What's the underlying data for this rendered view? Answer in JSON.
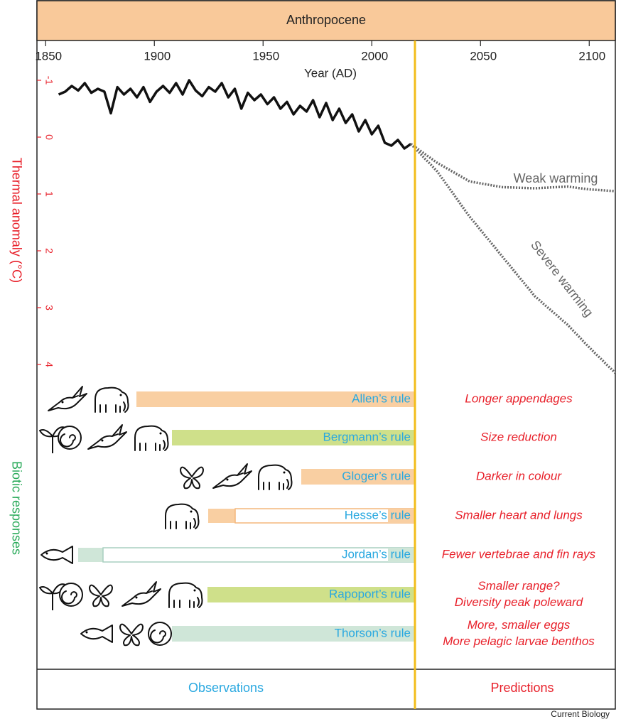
{
  "header": {
    "title": "Anthropocene"
  },
  "chart_data": {
    "type": "line",
    "x_label": "Year (AD)",
    "y_label": "Thermal anomaly (°C)",
    "xlim": [
      1846,
      2112
    ],
    "xticks": [
      1850,
      1900,
      1950,
      2000,
      2050,
      2100
    ],
    "ylim": [
      -1.3,
      4.2
    ],
    "yticks": [
      -1,
      0,
      1,
      2,
      3,
      4
    ],
    "y_inverted": true,
    "series": [
      {
        "color": "#111111",
        "style": "solid",
        "x": [
          1856,
          1859,
          1862,
          1865,
          1868,
          1871,
          1874,
          1877,
          1880,
          1883,
          1886,
          1889,
          1892,
          1895,
          1898,
          1901,
          1904,
          1907,
          1910,
          1913,
          1916,
          1919,
          1922,
          1925,
          1928,
          1931,
          1934,
          1937,
          1940,
          1943,
          1946,
          1949,
          1952,
          1955,
          1958,
          1961,
          1964,
          1967,
          1970,
          1973,
          1976,
          1979,
          1982,
          1985,
          1988,
          1991,
          1994,
          1997,
          2000,
          2003,
          2006,
          2009,
          2012,
          2015,
          2018
        ],
        "values": [
          -0.75,
          -0.8,
          -0.9,
          -0.82,
          -0.95,
          -0.78,
          -0.85,
          -0.8,
          -0.42,
          -0.88,
          -0.75,
          -0.85,
          -0.7,
          -0.88,
          -0.62,
          -0.8,
          -0.9,
          -0.78,
          -0.95,
          -0.75,
          -1.0,
          -0.82,
          -0.72,
          -0.88,
          -0.8,
          -0.95,
          -0.7,
          -0.85,
          -0.5,
          -0.78,
          -0.65,
          -0.75,
          -0.58,
          -0.7,
          -0.5,
          -0.62,
          -0.4,
          -0.55,
          -0.45,
          -0.65,
          -0.35,
          -0.6,
          -0.3,
          -0.5,
          -0.25,
          -0.4,
          -0.1,
          -0.3,
          -0.05,
          -0.2,
          0.1,
          0.15,
          0.05,
          0.2,
          0.12
        ]
      },
      {
        "name": "Weak warming",
        "color": "#666666",
        "style": "dotted",
        "x": [
          2018,
          2030,
          2045,
          2060,
          2075,
          2090,
          2100,
          2112
        ],
        "values": [
          0.12,
          0.45,
          0.78,
          0.88,
          0.9,
          0.87,
          0.92,
          0.95
        ]
      },
      {
        "name": "Severe warming",
        "color": "#666666",
        "style": "dotted",
        "x": [
          2018,
          2030,
          2045,
          2060,
          2075,
          2090,
          2100,
          2112
        ],
        "values": [
          0.12,
          0.6,
          1.4,
          2.1,
          2.8,
          3.3,
          3.7,
          4.15
        ]
      }
    ]
  },
  "biotic_label": "Biotic responses",
  "rules": [
    {
      "name": "Allen’s rule",
      "prediction": [
        "Longer appendages"
      ]
    },
    {
      "name": "Bergmann’s rule",
      "prediction": [
        "Size reduction"
      ]
    },
    {
      "name": "Gloger’s rule",
      "prediction": [
        "Darker in colour"
      ]
    },
    {
      "name": "Hesse’s rule",
      "prediction": [
        "Smaller heart and lungs"
      ]
    },
    {
      "name": "Jordan’s rule",
      "prediction": [
        "Fewer vertebrae and fin rays"
      ]
    },
    {
      "name": "Rapoport’s rule",
      "prediction": [
        "Smaller range?",
        "Diversity peak poleward"
      ]
    },
    {
      "name": "Thorson’s rule",
      "prediction": [
        "More, smaller eggs",
        "More pelagic larvae benthos"
      ]
    }
  ],
  "footer": {
    "left": "Observations",
    "right": "Predictions",
    "credit": "Current Biology"
  }
}
